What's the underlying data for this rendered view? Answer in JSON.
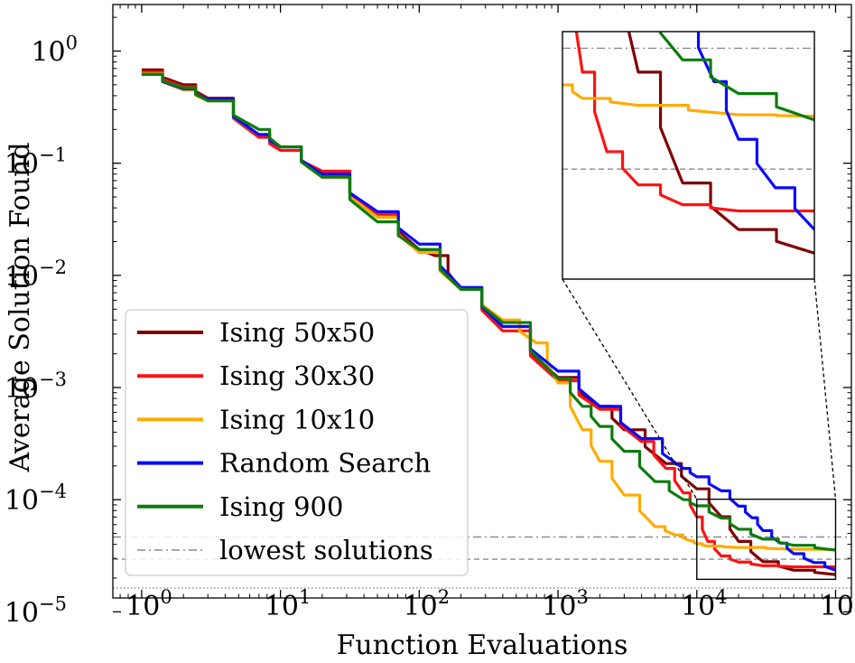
{
  "chart_data": {
    "type": "line",
    "title": "",
    "xlabel": "Function Evaluations",
    "ylabel": "Average Solution Found",
    "xscale": "log",
    "yscale": "log",
    "xlim": [
      0.62,
      130000
    ],
    "ylim": [
      1.33e-05,
      2.6
    ],
    "x_ticks": [
      {
        "base": "10",
        "exp": "0",
        "value": 1
      },
      {
        "base": "10",
        "exp": "1",
        "value": 10
      },
      {
        "base": "10",
        "exp": "2",
        "value": 100
      },
      {
        "base": "10",
        "exp": "3",
        "value": 1000
      },
      {
        "base": "10",
        "exp": "4",
        "value": 10000
      },
      {
        "base": "10",
        "exp": "5",
        "value": 100000
      }
    ],
    "y_ticks": [
      {
        "base": "10",
        "exp": "0",
        "value": 1
      },
      {
        "base": "10",
        "exp": "−1",
        "value": 0.1
      },
      {
        "base": "10",
        "exp": "−2",
        "value": 0.01
      },
      {
        "base": "10",
        "exp": "−3",
        "value": 0.001
      },
      {
        "base": "10",
        "exp": "−4",
        "value": 0.0001
      },
      {
        "base": "10",
        "exp": "−5",
        "value": 1e-05
      }
    ],
    "legend": {
      "position": "lower-left",
      "entries": [
        {
          "label": "Ising 50x50",
          "color": "#7f0000",
          "style": "solid"
        },
        {
          "label": "Ising 30x30",
          "color": "#ff1111",
          "style": "solid"
        },
        {
          "label": "Ising 10x10",
          "color": "#ffab00",
          "style": "solid"
        },
        {
          "label": "Random Search",
          "color": "#0a0aff",
          "style": "solid"
        },
        {
          "label": "Ising 900",
          "color": "#0c7c0c",
          "style": "solid"
        },
        {
          "label": "lowest solutions",
          "color": "#8c8c8c",
          "style": "dashdot"
        }
      ]
    },
    "series": [
      {
        "name": "Ising 50x50",
        "color": "#7f0000",
        "x": [
          1,
          2,
          3,
          7,
          10,
          20,
          50,
          100,
          130,
          200,
          400,
          1000,
          2000,
          3000,
          6000,
          10000,
          15000,
          20000,
          30000,
          50000,
          100000
        ],
        "y": [
          0.68,
          0.5,
          0.38,
          0.18,
          0.14,
          0.08,
          0.036,
          0.017,
          0.015,
          0.0075,
          0.0035,
          0.00123,
          0.00068,
          0.00042,
          0.00021,
          0.000125,
          7.05e-05,
          4.25e-05,
          2.8e-05,
          2.35e-05,
          2.15e-05
        ]
      },
      {
        "name": "Ising 30x30",
        "color": "#ff1111",
        "x": [
          1,
          2,
          3,
          7,
          10,
          20,
          50,
          100,
          200,
          400,
          1000,
          2000,
          4000,
          6000,
          8000,
          10000,
          12000,
          15000,
          20000,
          30000,
          50000,
          100000
        ],
        "y": [
          0.65,
          0.48,
          0.37,
          0.17,
          0.13,
          0.085,
          0.035,
          0.016,
          0.0075,
          0.0032,
          0.00115,
          0.00064,
          0.00033,
          0.00019,
          0.000115,
          7.02e-05,
          4.25e-05,
          3.15e-05,
          2.78e-05,
          2.58e-05,
          2.52e-05,
          2.52e-05
        ]
      },
      {
        "name": "Ising 10x10",
        "color": "#ffab00",
        "x": [
          1,
          2,
          3,
          7,
          10,
          20,
          50,
          100,
          200,
          400,
          700,
          1000,
          1500,
          2000,
          3000,
          5000,
          7000,
          9000,
          10000,
          12000,
          20000,
          50000,
          100000
        ],
        "y": [
          0.63,
          0.45,
          0.36,
          0.18,
          0.14,
          0.075,
          0.033,
          0.016,
          0.0075,
          0.004,
          0.0025,
          0.0011,
          0.00042,
          0.00022,
          0.00011,
          5.75e-05,
          4.85e-05,
          4.3e-05,
          4.05e-05,
          3.85e-05,
          3.75e-05,
          3.62e-05,
          3.6e-05
        ]
      },
      {
        "name": "Random Search",
        "color": "#0a0aff",
        "x": [
          1,
          2,
          3,
          7,
          10,
          20,
          50,
          100,
          200,
          400,
          1000,
          2000,
          4000,
          8000,
          10000,
          15000,
          20000,
          25000,
          30000,
          40000,
          50000,
          70000,
          100000
        ],
        "y": [
          0.62,
          0.46,
          0.37,
          0.18,
          0.14,
          0.08,
          0.037,
          0.019,
          0.0078,
          0.0035,
          0.0014,
          0.00068,
          0.00035,
          0.00019,
          0.00016,
          0.00012,
          8.75e-05,
          6.9e-05,
          5.3e-05,
          4.1e-05,
          3.3e-05,
          2.75e-05,
          2.35e-05
        ]
      },
      {
        "name": "Ising 900",
        "color": "#0c7c0c",
        "x": [
          1,
          2,
          3,
          7,
          10,
          20,
          50,
          100,
          200,
          400,
          1000,
          1500,
          2000,
          3000,
          5000,
          8000,
          10000,
          15000,
          20000,
          30000,
          50000,
          100000
        ],
        "y": [
          0.62,
          0.47,
          0.36,
          0.2,
          0.14,
          0.075,
          0.03,
          0.017,
          0.0075,
          0.0038,
          0.0012,
          0.00068,
          0.00045,
          0.00027,
          0.000145,
          0.0001,
          8.82e-05,
          6.85e-05,
          5.45e-05,
          4.45e-05,
          3.92e-05,
          3.55e-05
        ]
      }
    ],
    "reference_lines": [
      {
        "y": 4.65e-05,
        "style": "dashdot",
        "color": "#8c8c8c"
      },
      {
        "y": 2.95e-05,
        "style": "dashed",
        "color": "#8c8c8c"
      },
      {
        "y": 1.63e-05,
        "style": "dotted",
        "color": "#8c8c8c"
      }
    ],
    "zoom_region": {
      "xlim": [
        10000,
        100000
      ],
      "ylim": [
        1.95e-05,
        0.000101
      ]
    },
    "inset": {
      "xlim": [
        10000,
        100000
      ],
      "ylim": [
        1.95e-05,
        4.95e-05
      ],
      "reference_lines": [
        {
          "y": 4.65e-05,
          "style": "dashdot",
          "color": "#8c8c8c"
        },
        {
          "y": 2.95e-05,
          "style": "dashed",
          "color": "#8c8c8c"
        }
      ]
    }
  }
}
